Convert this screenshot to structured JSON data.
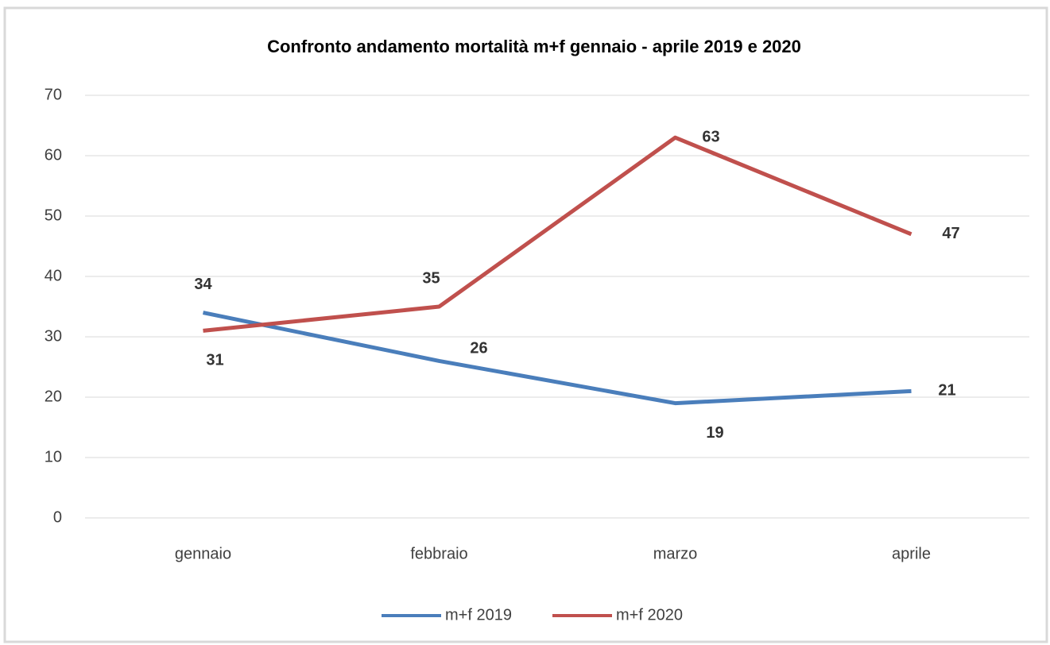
{
  "chart_data": {
    "type": "line",
    "title": "Confronto andamento mortalità m+f gennaio - aprile 2019 e 2020",
    "categories": [
      "gennaio",
      "febbraio",
      "marzo",
      "aprile"
    ],
    "series": [
      {
        "name": "m+f 2019",
        "color": "#4a7ebb",
        "values": [
          34,
          26,
          19,
          21
        ]
      },
      {
        "name": "m+f 2020",
        "color": "#c0504d",
        "values": [
          31,
          35,
          63,
          47
        ]
      }
    ],
    "ylim": [
      0,
      70
    ],
    "yticks": [
      0,
      10,
      20,
      30,
      40,
      50,
      60,
      70
    ],
    "grid": true,
    "legend": "bottom"
  }
}
